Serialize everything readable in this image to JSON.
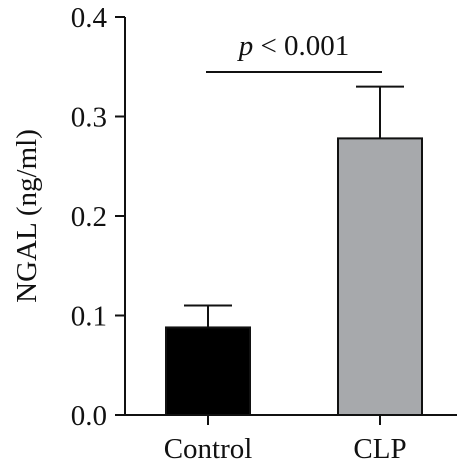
{
  "chart_data": {
    "type": "bar",
    "title": "",
    "xlabel": "",
    "ylabel": "NGAL (ng/ml)",
    "categories": [
      "Control",
      "CLP"
    ],
    "values": [
      0.088,
      0.278
    ],
    "error_upper": [
      0.11,
      0.33
    ],
    "bar_colors": [
      "#000000",
      "#a7a9ac"
    ],
    "ylim": [
      0,
      0.4
    ],
    "yticks": [
      0.0,
      0.1,
      0.2,
      0.3,
      0.4
    ],
    "ytick_labels": [
      "0.0",
      "0.1",
      "0.2",
      "0.3",
      "0.4"
    ],
    "grid": false,
    "annotation": {
      "symbol": "p",
      "text": " < 0.001",
      "from_category": 0,
      "to_category": 1
    }
  }
}
